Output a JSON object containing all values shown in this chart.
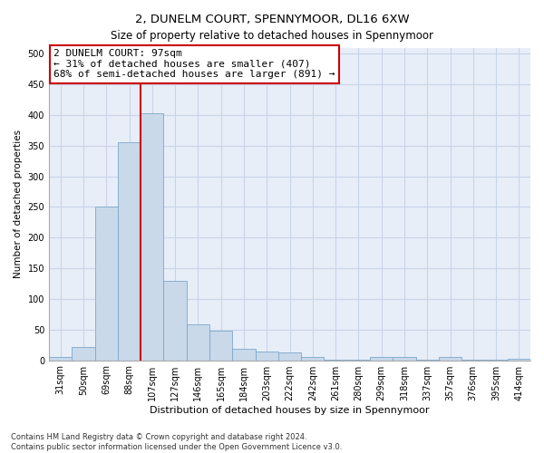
{
  "title": "2, DUNELM COURT, SPENNYMOOR, DL16 6XW",
  "subtitle": "Size of property relative to detached houses in Spennymoor",
  "xlabel": "Distribution of detached houses by size in Spennymoor",
  "ylabel": "Number of detached properties",
  "footnote1": "Contains HM Land Registry data © Crown copyright and database right 2024.",
  "footnote2": "Contains public sector information licensed under the Open Government Licence v3.0.",
  "annotation_line1": "2 DUNELM COURT: 97sqm",
  "annotation_line2": "← 31% of detached houses are smaller (407)",
  "annotation_line3": "68% of semi-detached houses are larger (891) →",
  "bar_color": "#c9d9ea",
  "bar_edge_color": "#7aa8cc",
  "vline_color": "#cc0000",
  "annotation_box_edgecolor": "#cc0000",
  "categories": [
    "31sqm",
    "50sqm",
    "69sqm",
    "88sqm",
    "107sqm",
    "127sqm",
    "146sqm",
    "165sqm",
    "184sqm",
    "203sqm",
    "222sqm",
    "242sqm",
    "261sqm",
    "280sqm",
    "299sqm",
    "318sqm",
    "337sqm",
    "357sqm",
    "376sqm",
    "395sqm",
    "414sqm"
  ],
  "values": [
    5,
    22,
    250,
    355,
    403,
    130,
    58,
    48,
    18,
    14,
    12,
    6,
    1,
    1,
    6,
    5,
    1,
    5,
    1,
    1,
    2
  ],
  "ylim": [
    0,
    510
  ],
  "yticks": [
    0,
    50,
    100,
    150,
    200,
    250,
    300,
    350,
    400,
    450,
    500
  ],
  "vline_x": 3.5,
  "grid_color": "#c8d4e8",
  "bg_color": "#e8eef8",
  "title_fontsize": 9.5,
  "subtitle_fontsize": 8.5,
  "tick_fontsize": 7,
  "ylabel_fontsize": 7.5,
  "xlabel_fontsize": 8,
  "annotation_fontsize": 8,
  "footnote_fontsize": 6
}
